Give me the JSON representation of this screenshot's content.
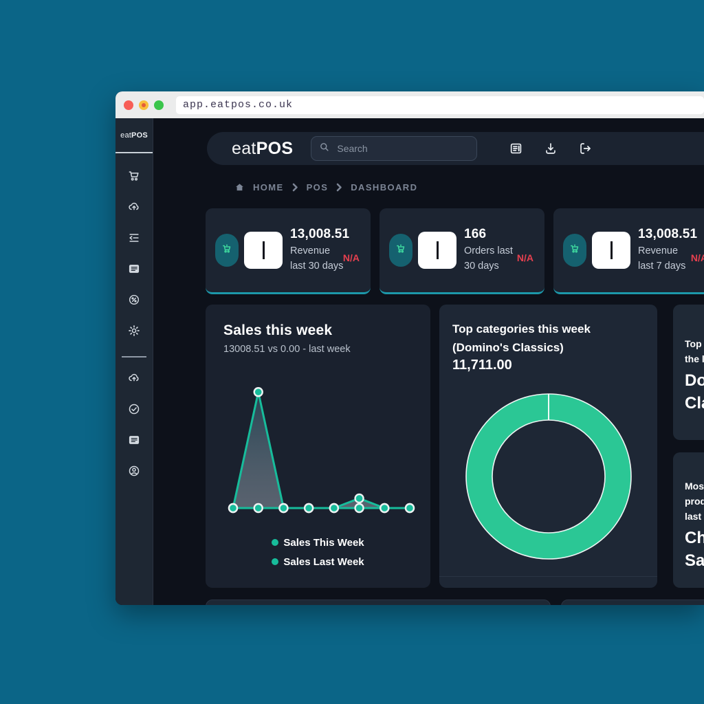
{
  "browser": {
    "url": "app.eatpos.co.uk",
    "traffic_lights": [
      "close",
      "minimize",
      "zoom"
    ]
  },
  "sidebar": {
    "logo_eat": "eat",
    "logo_pos": "POS",
    "icons_top": [
      "cart",
      "cloud-upload",
      "outdent",
      "list-card",
      "discount",
      "gear"
    ],
    "icons_bottom": [
      "cloud-upload",
      "check-circle",
      "list-card",
      "user-circle"
    ]
  },
  "topbar": {
    "logo_eat": "eat",
    "logo_pos": "POS",
    "search_placeholder": "Search",
    "icons": [
      "reports",
      "download",
      "logout"
    ]
  },
  "breadcrumb": {
    "items": [
      "HOME",
      "POS",
      "DASHBOARD"
    ]
  },
  "stats": [
    {
      "value": "13,008.51",
      "label": "Revenue last 30 days",
      "badge": "N/A"
    },
    {
      "value": "166",
      "label": "Orders last 30 days",
      "badge": "N/A"
    },
    {
      "value": "13,008.51",
      "label": "Revenue last 7 days",
      "badge": "N/A"
    }
  ],
  "sales_card": {
    "title": "Sales this week",
    "subtitle": "13008.51 vs 0.00 - last week",
    "legend": [
      "Sales This Week",
      "Sales Last Week"
    ]
  },
  "categories_card": {
    "title_line1": "Top categories this week",
    "title_line2": "(Domino's Classics)",
    "value": "11,711.00"
  },
  "right_cards": [
    {
      "lines": [
        "Top c",
        "the l"
      ],
      "value_lines": [
        "Do",
        "Cla"
      ]
    },
    {
      "lines": [
        "Most",
        "prod",
        "last "
      ],
      "value_lines": [
        "Ch",
        "Sa"
      ]
    }
  ],
  "colors": {
    "page_background": "#0B6587",
    "content_background": "#0D111A",
    "card_background": "#1C2431",
    "accent_teal": "#17BC9B",
    "donut_green": "#2BC795",
    "stat_border_teal": "#1C98AA",
    "alert_red": "#E5404F"
  },
  "chart_data": [
    {
      "type": "line",
      "title": "Sales this week",
      "x": [
        1,
        2,
        3,
        4,
        5,
        6,
        7,
        8
      ],
      "series": [
        {
          "name": "Sales This Week",
          "values": [
            0,
            12000,
            0,
            0,
            0,
            1000,
            0,
            0
          ]
        },
        {
          "name": "Sales Last Week",
          "values": [
            0,
            0,
            0,
            0,
            0,
            0,
            0,
            0
          ]
        }
      ],
      "ylim": [
        0,
        12800
      ],
      "grid": false,
      "legend_position": "bottom",
      "line_color": "#17BC9B"
    },
    {
      "type": "pie",
      "title": "Top categories this week (Domino's Classics)",
      "categories": [
        "Domino's Classics"
      ],
      "values": [
        11711.0
      ],
      "ring_color": "#2BC795"
    }
  ]
}
